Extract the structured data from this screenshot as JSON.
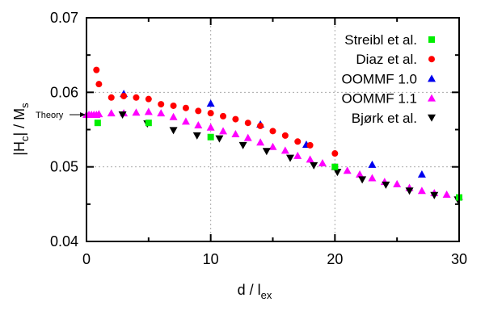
{
  "chart_data": {
    "type": "scatter",
    "xlabel": "d / l",
    "xlabel_sub": "ex",
    "ylabel": "|H",
    "ylabel_sub1": "c",
    "ylabel_mid": "| / M",
    "ylabel_sub2": "s",
    "xlim": [
      0,
      30
    ],
    "ylim": [
      0.04,
      0.07
    ],
    "x_ticks": [
      "0",
      "10",
      "20",
      "30"
    ],
    "y_ticks": [
      "0.04",
      "0.05",
      "0.06",
      "0.07"
    ],
    "grid": true,
    "legend": "top-right",
    "annotation": {
      "text": "Theory",
      "y": 0.057
    },
    "series": [
      {
        "name": "Streibl et al.",
        "marker": "square",
        "color": "#00ee00",
        "points": [
          [
            0.9,
            0.0559
          ],
          [
            5,
            0.0559
          ],
          [
            10,
            0.054
          ],
          [
            20,
            0.05
          ],
          [
            30,
            0.0459
          ]
        ]
      },
      {
        "name": "Diaz et al.",
        "marker": "circle",
        "color": "#ff0000",
        "points": [
          [
            0.8,
            0.063
          ],
          [
            1,
            0.0611
          ],
          [
            2,
            0.0593
          ],
          [
            3,
            0.0595
          ],
          [
            4,
            0.0593
          ],
          [
            5,
            0.0591
          ],
          [
            6,
            0.0584
          ],
          [
            7,
            0.0582
          ],
          [
            8,
            0.0579
          ],
          [
            9,
            0.0575
          ],
          [
            10,
            0.0572
          ],
          [
            11,
            0.0568
          ],
          [
            12,
            0.0564
          ],
          [
            13,
            0.0559
          ],
          [
            14,
            0.0555
          ],
          [
            15,
            0.0548
          ],
          [
            16,
            0.0542
          ],
          [
            17,
            0.0534
          ],
          [
            18,
            0.0529
          ],
          [
            20,
            0.0518
          ]
        ]
      },
      {
        "name": "OOMMF 1.0",
        "marker": "triangle-up",
        "color": "#0000ee",
        "points": [
          [
            3,
            0.0598
          ],
          [
            10,
            0.0585
          ],
          [
            14,
            0.0557
          ],
          [
            17.7,
            0.053
          ],
          [
            23,
            0.0503
          ],
          [
            27,
            0.049
          ]
        ]
      },
      {
        "name": "OOMMF 1.1",
        "marker": "triangle-up",
        "color": "#ff00ff",
        "points": [
          [
            0,
            0.057
          ],
          [
            0.2,
            0.057
          ],
          [
            0.4,
            0.057
          ],
          [
            0.6,
            0.057
          ],
          [
            0.8,
            0.057
          ],
          [
            1,
            0.0571
          ],
          [
            2,
            0.0572
          ],
          [
            3,
            0.0572
          ],
          [
            4,
            0.0573
          ],
          [
            5,
            0.0574
          ],
          [
            6,
            0.0572
          ],
          [
            7,
            0.0567
          ],
          [
            8,
            0.0561
          ],
          [
            9,
            0.0556
          ],
          [
            10,
            0.0553
          ],
          [
            11,
            0.0548
          ],
          [
            12,
            0.0544
          ],
          [
            13,
            0.0539
          ],
          [
            14,
            0.0533
          ],
          [
            15,
            0.0527
          ],
          [
            16,
            0.0522
          ],
          [
            17,
            0.0515
          ],
          [
            18,
            0.051
          ],
          [
            19,
            0.0505
          ],
          [
            20,
            0.05
          ],
          [
            21,
            0.0495
          ],
          [
            22,
            0.049
          ],
          [
            23,
            0.0485
          ],
          [
            24,
            0.048
          ],
          [
            25,
            0.0477
          ],
          [
            26,
            0.0472
          ],
          [
            27,
            0.0468
          ],
          [
            28,
            0.0465
          ],
          [
            29,
            0.0463
          ],
          [
            30,
            0.046
          ]
        ]
      },
      {
        "name": "Bjørk et al.",
        "marker": "triangle-down",
        "color": "#000000",
        "points": [
          [
            2.9,
            0.057
          ],
          [
            4.9,
            0.0558
          ],
          [
            7,
            0.0549
          ],
          [
            8.9,
            0.0542
          ],
          [
            10.7,
            0.0538
          ],
          [
            12.6,
            0.0529
          ],
          [
            14.5,
            0.0521
          ],
          [
            16.4,
            0.0512
          ],
          [
            18.3,
            0.0502
          ],
          [
            20.2,
            0.0493
          ],
          [
            22.2,
            0.0483
          ],
          [
            24.1,
            0.0476
          ],
          [
            26,
            0.0468
          ],
          [
            28,
            0.0462
          ],
          [
            29.9,
            0.0456
          ]
        ]
      }
    ]
  }
}
